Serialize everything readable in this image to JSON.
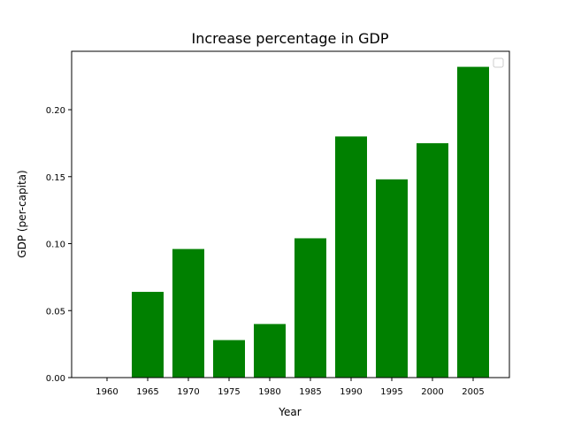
{
  "chart_data": {
    "type": "bar",
    "title": "Increase percentage in GDP",
    "xlabel": "Year",
    "ylabel": "GDP (per-capita)",
    "categories": [
      "1960",
      "1965",
      "1970",
      "1975",
      "1980",
      "1985",
      "1990",
      "1995",
      "2000",
      "2005"
    ],
    "values": [
      0.0,
      0.064,
      0.096,
      0.028,
      0.04,
      0.104,
      0.18,
      0.148,
      0.175,
      0.232
    ],
    "ylim": [
      0,
      0.2436
    ],
    "yticks": [
      "0.00",
      "0.05",
      "0.10",
      "0.15",
      "0.20"
    ],
    "bar_color": "#008000",
    "grid": false,
    "legend": "upper-right, empty"
  }
}
